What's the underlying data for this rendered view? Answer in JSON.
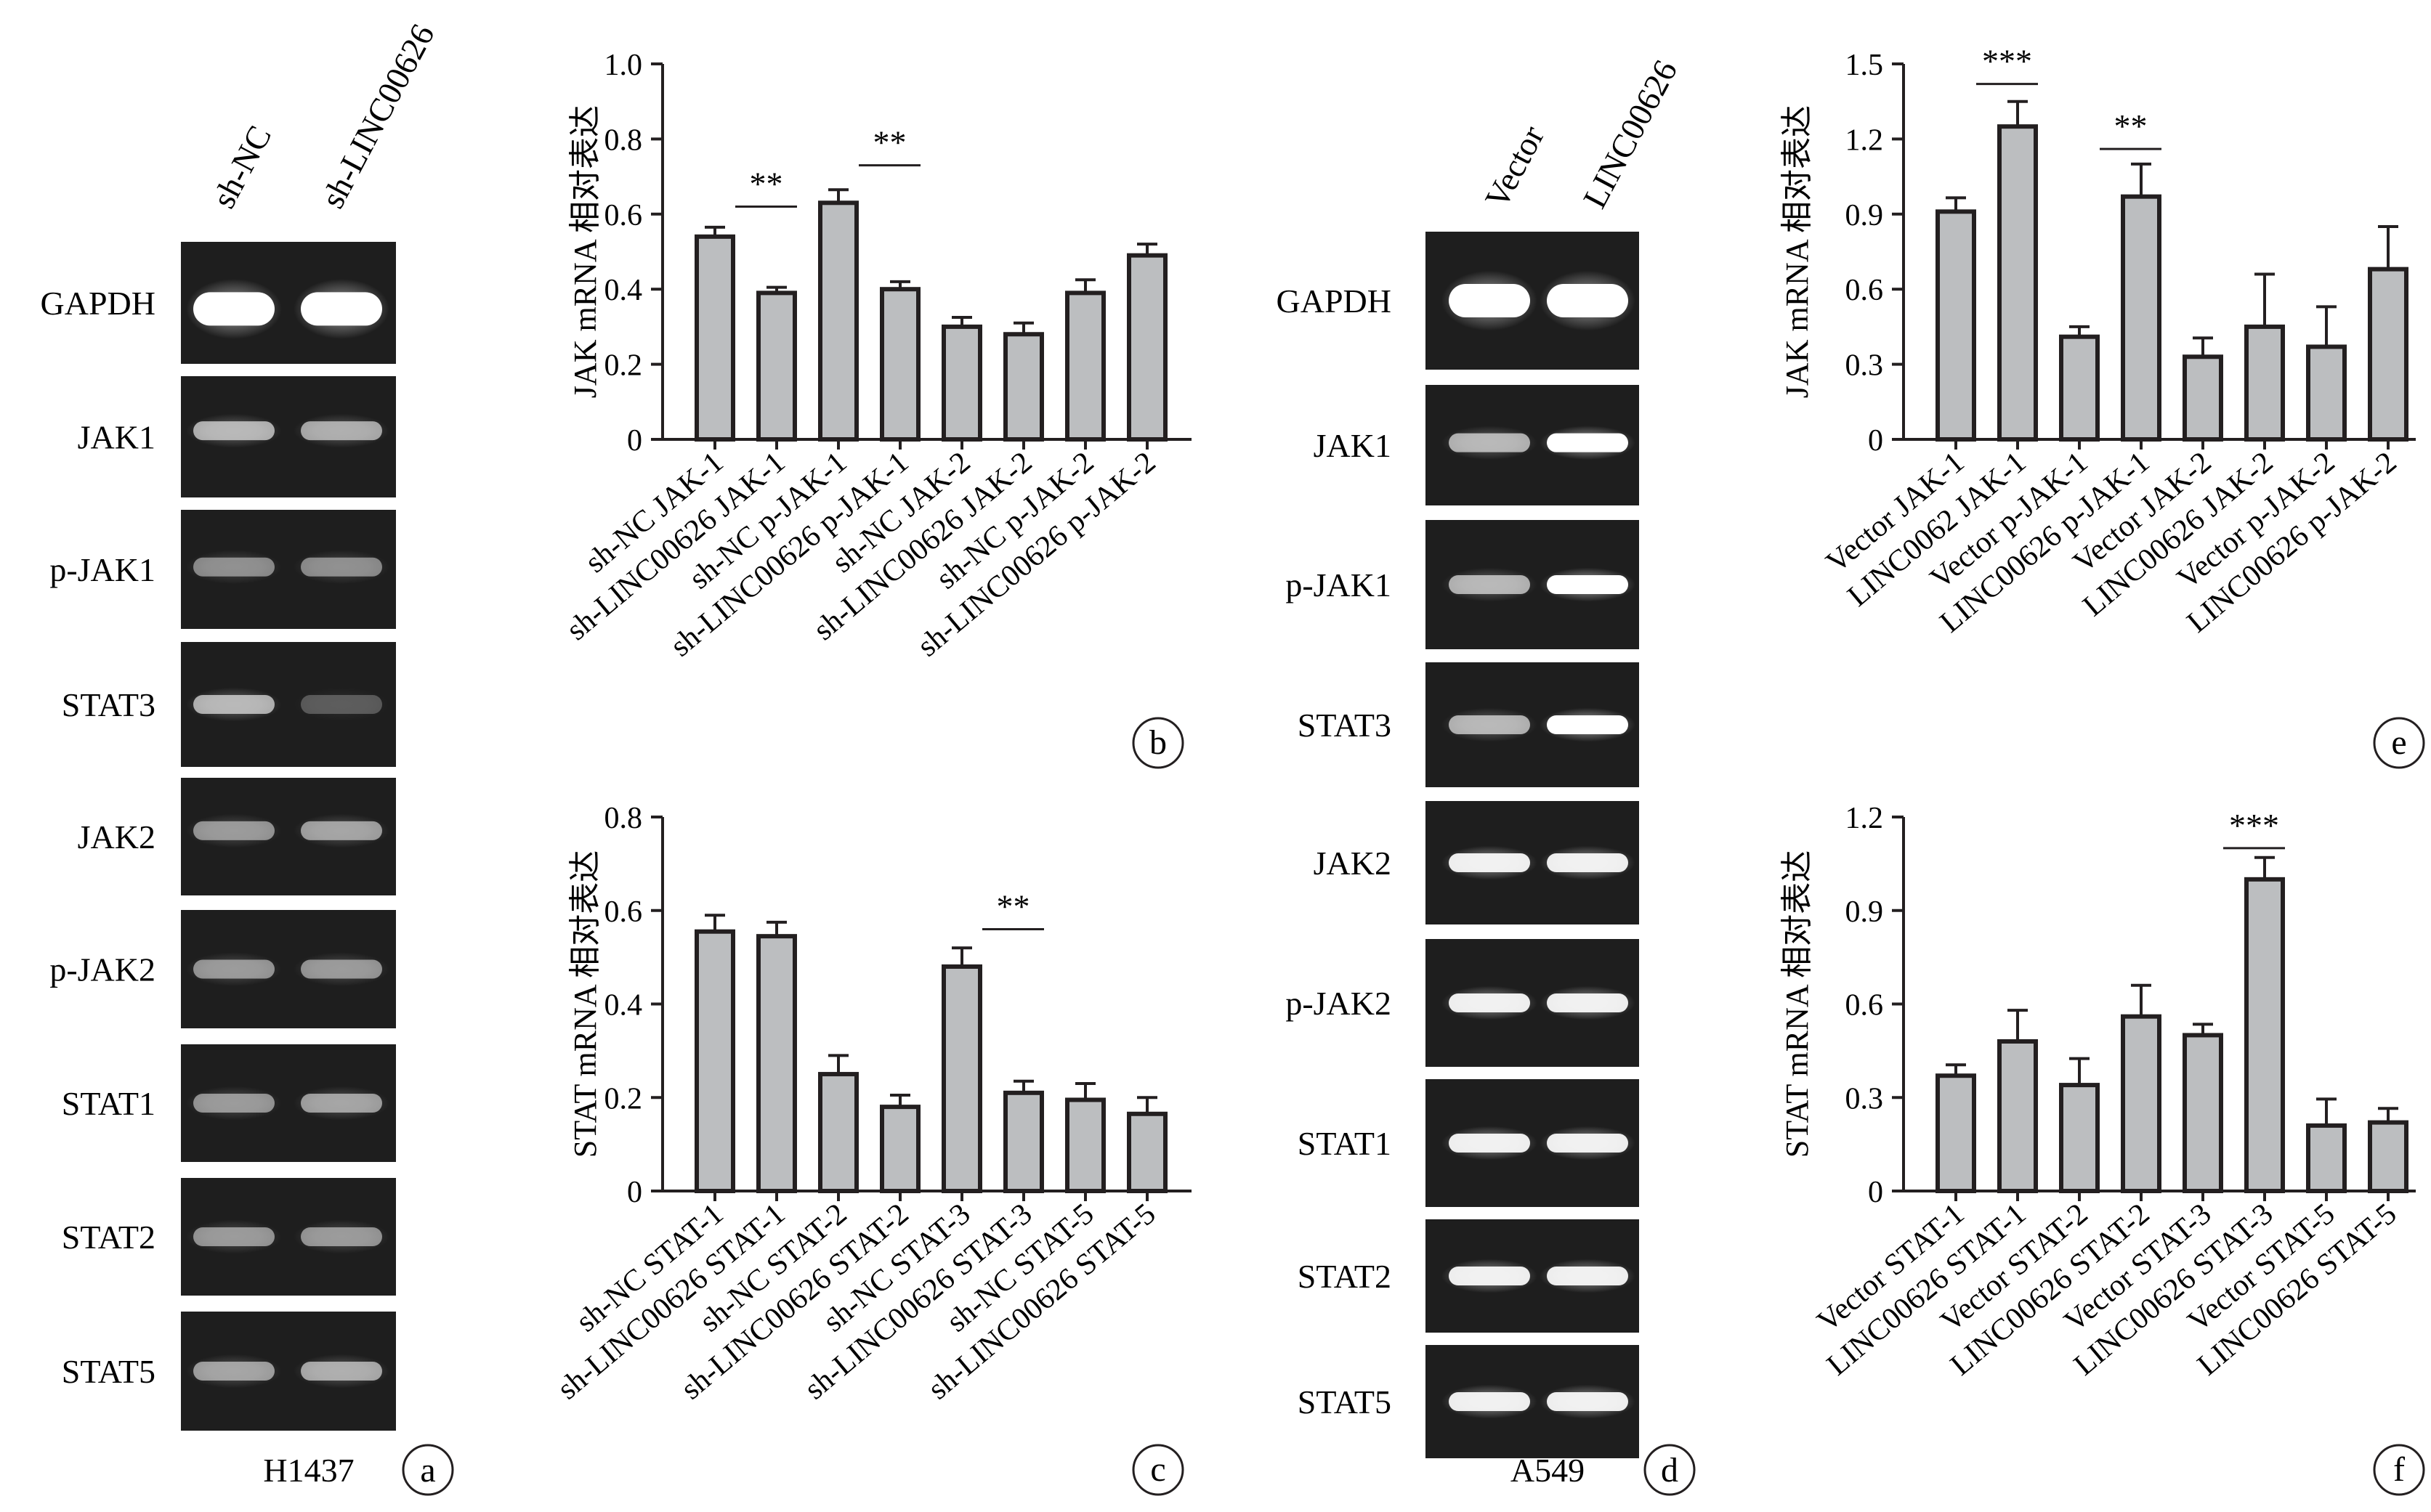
{
  "panels": {
    "a": {
      "letter": "a",
      "cell_line": "H1437",
      "lanes": [
        "sh-NC",
        "sh-LINC00626"
      ],
      "blots": [
        {
          "name": "GAPDH",
          "intensity": [
            1.0,
            1.0
          ]
        },
        {
          "name": "JAK1",
          "intensity": [
            0.55,
            0.5
          ]
        },
        {
          "name": "p-JAK1",
          "intensity": [
            0.35,
            0.35
          ]
        },
        {
          "name": "STAT3",
          "intensity": [
            0.55,
            0.12
          ]
        },
        {
          "name": "JAK2",
          "intensity": [
            0.4,
            0.45
          ]
        },
        {
          "name": "p-JAK2",
          "intensity": [
            0.4,
            0.4
          ]
        },
        {
          "name": "STAT1",
          "intensity": [
            0.4,
            0.45
          ]
        },
        {
          "name": "STAT2",
          "intensity": [
            0.4,
            0.4
          ]
        },
        {
          "name": "STAT5",
          "intensity": [
            0.45,
            0.5
          ]
        }
      ]
    },
    "d": {
      "letter": "d",
      "cell_line": "A549",
      "lanes": [
        "Vector",
        "LINC00626"
      ],
      "blots": [
        {
          "name": "GAPDH",
          "intensity": [
            1.0,
            1.0
          ]
        },
        {
          "name": "JAK1",
          "intensity": [
            0.55,
            1.0
          ]
        },
        {
          "name": "p-JAK1",
          "intensity": [
            0.55,
            1.0
          ]
        },
        {
          "name": "STAT3",
          "intensity": [
            0.55,
            1.0
          ]
        },
        {
          "name": "JAK2",
          "intensity": [
            0.9,
            0.9
          ]
        },
        {
          "name": "p-JAK2",
          "intensity": [
            0.9,
            0.9
          ]
        },
        {
          "name": "STAT1",
          "intensity": [
            0.9,
            0.9
          ]
        },
        {
          "name": "STAT2",
          "intensity": [
            0.9,
            0.9
          ]
        },
        {
          "name": "STAT5",
          "intensity": [
            0.9,
            0.9
          ]
        }
      ]
    }
  },
  "chart_data": [
    {
      "panel": "b",
      "type": "bar",
      "ylabel": "JAK mRNA 相对表达",
      "ylim": [
        0,
        1.0
      ],
      "yticks": [
        "0",
        "0.2",
        "0.4",
        "0.6",
        "0.8",
        "1.0"
      ],
      "categories": [
        "sh-NC JAK-1",
        "sh-LINC00626 JAK-1",
        "sh-NC p-JAK-1",
        "sh-LINC00626 p-JAK-1",
        "sh-NC JAK-2",
        "sh-LINC00626 JAK-2",
        "sh-NC p-JAK-2",
        "sh-LINC00626 p-JAK-2"
      ],
      "values": [
        0.54,
        0.39,
        0.63,
        0.4,
        0.3,
        0.28,
        0.39,
        0.49
      ],
      "errors": [
        0.025,
        0.015,
        0.035,
        0.02,
        0.025,
        0.03,
        0.035,
        0.03
      ],
      "significance": [
        {
          "from": 0,
          "to": 1,
          "label": "**",
          "y": 0.62
        },
        {
          "from": 2,
          "to": 3,
          "label": "**",
          "y": 0.73
        }
      ]
    },
    {
      "panel": "c",
      "type": "bar",
      "ylabel": "STAT mRNA 相对表达",
      "ylim": [
        0,
        0.8
      ],
      "yticks": [
        "0",
        "0.2",
        "0.4",
        "0.6",
        "0.8"
      ],
      "categories": [
        "sh-NC STAT-1",
        "sh-LINC00626 STAT-1",
        "sh-NC STAT-2",
        "sh-LINC00626 STAT-2",
        "sh-NC STAT-3",
        "sh-LINC00626 STAT-3",
        "sh-NC STAT-5",
        "sh-LINC00626 STAT-5"
      ],
      "values": [
        0.555,
        0.545,
        0.25,
        0.18,
        0.48,
        0.21,
        0.195,
        0.165
      ],
      "errors": [
        0.035,
        0.03,
        0.04,
        0.025,
        0.04,
        0.025,
        0.035,
        0.035
      ],
      "significance": [
        {
          "from": 4,
          "to": 5,
          "label": "**",
          "y": 0.56
        }
      ]
    },
    {
      "panel": "e",
      "type": "bar",
      "ylabel": "JAK mRNA 相对表达",
      "ylim": [
        0,
        1.5
      ],
      "yticks": [
        "0",
        "0.3",
        "0.6",
        "0.9",
        "1.2",
        "1.5"
      ],
      "categories": [
        "Vector JAK-1",
        "LINC0062 JAK-1",
        "Vector p-JAK-1",
        "LINC00626 p-JAK-1",
        "Vector JAK-2",
        "LINC00626 JAK-2",
        "Vector p-JAK-2",
        "LINC00626 p-JAK-2"
      ],
      "values": [
        0.91,
        1.25,
        0.41,
        0.97,
        0.33,
        0.45,
        0.37,
        0.68
      ],
      "errors": [
        0.055,
        0.1,
        0.04,
        0.13,
        0.075,
        0.21,
        0.16,
        0.17
      ],
      "significance": [
        {
          "from": 0,
          "to": 1,
          "label": "***",
          "y": 1.42
        },
        {
          "from": 2,
          "to": 3,
          "label": "**",
          "y": 1.16
        }
      ]
    },
    {
      "panel": "f",
      "type": "bar",
      "ylabel": "STAT mRNA 相对表达",
      "ylim": [
        0,
        1.2
      ],
      "yticks": [
        "0",
        "0.3",
        "0.6",
        "0.9",
        "1.2"
      ],
      "categories": [
        "Vector STAT-1",
        "LINC00626 STAT-1",
        "Vector STAT-2",
        "LINC00626 STAT-2",
        "Vector STAT-3",
        "LINC00626 STAT-3",
        "Vector STAT-5",
        "LINC00626 STAT-5"
      ],
      "values": [
        0.37,
        0.48,
        0.34,
        0.56,
        0.5,
        1.0,
        0.21,
        0.22
      ],
      "errors": [
        0.035,
        0.1,
        0.085,
        0.1,
        0.035,
        0.07,
        0.085,
        0.045
      ],
      "significance": [
        {
          "from": 4,
          "to": 5,
          "label": "***",
          "y": 1.1
        }
      ]
    }
  ]
}
